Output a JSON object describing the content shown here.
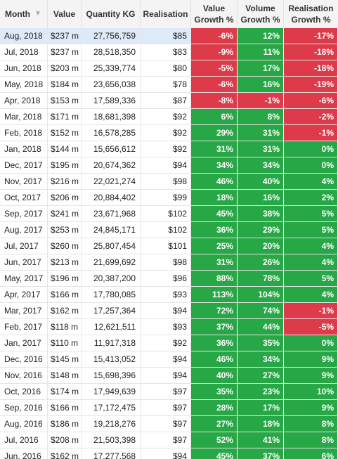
{
  "header": {
    "month": "Month",
    "value": "Value",
    "qty": "Quantity KG",
    "realisation": "Realisation",
    "value_growth": [
      "Value",
      "Growth %"
    ],
    "volume_growth": [
      "Volume",
      "Growth %"
    ],
    "realisation_growth": [
      "Realisation",
      "Growth %"
    ]
  },
  "colors": {
    "positive": "#27a745",
    "negative": "#dd3b4a",
    "selected_row": "#dfeaf8"
  },
  "rows": [
    {
      "month": "Aug, 2018",
      "value": "$237 m",
      "qty": "27,756,759",
      "real": "$85",
      "vg": "-6%",
      "volg": "12%",
      "rg": "-17%"
    },
    {
      "month": "Jul, 2018",
      "value": "$237 m",
      "qty": "28,518,350",
      "real": "$83",
      "vg": "-9%",
      "volg": "11%",
      "rg": "-18%"
    },
    {
      "month": "Jun, 2018",
      "value": "$203 m",
      "qty": "25,339,774",
      "real": "$80",
      "vg": "-5%",
      "volg": "17%",
      "rg": "-18%"
    },
    {
      "month": "May, 2018",
      "value": "$184 m",
      "qty": "23,656,038",
      "real": "$78",
      "vg": "-6%",
      "volg": "16%",
      "rg": "-19%"
    },
    {
      "month": "Apr, 2018",
      "value": "$153 m",
      "qty": "17,589,336",
      "real": "$87",
      "vg": "-8%",
      "volg": "-1%",
      "rg": "-6%"
    },
    {
      "month": "Mar, 2018",
      "value": "$171 m",
      "qty": "18,681,398",
      "real": "$92",
      "vg": "6%",
      "volg": "8%",
      "rg": "-2%"
    },
    {
      "month": "Feb, 2018",
      "value": "$152 m",
      "qty": "16,578,285",
      "real": "$92",
      "vg": "29%",
      "volg": "31%",
      "rg": "-1%"
    },
    {
      "month": "Jan, 2018",
      "value": "$144 m",
      "qty": "15,656,612",
      "real": "$92",
      "vg": "31%",
      "volg": "31%",
      "rg": "0%"
    },
    {
      "month": "Dec, 2017",
      "value": "$195 m",
      "qty": "20,674,362",
      "real": "$94",
      "vg": "34%",
      "volg": "34%",
      "rg": "0%"
    },
    {
      "month": "Nov, 2017",
      "value": "$216 m",
      "qty": "22,021,274",
      "real": "$98",
      "vg": "46%",
      "volg": "40%",
      "rg": "4%"
    },
    {
      "month": "Oct, 2017",
      "value": "$206 m",
      "qty": "20,884,402",
      "real": "$99",
      "vg": "18%",
      "volg": "16%",
      "rg": "2%"
    },
    {
      "month": "Sep, 2017",
      "value": "$241 m",
      "qty": "23,671,968",
      "real": "$102",
      "vg": "45%",
      "volg": "38%",
      "rg": "5%"
    },
    {
      "month": "Aug, 2017",
      "value": "$253 m",
      "qty": "24,845,171",
      "real": "$102",
      "vg": "36%",
      "volg": "29%",
      "rg": "5%"
    },
    {
      "month": "Jul, 2017",
      "value": "$260 m",
      "qty": "25,807,454",
      "real": "$101",
      "vg": "25%",
      "volg": "20%",
      "rg": "4%"
    },
    {
      "month": "Jun, 2017",
      "value": "$213 m",
      "qty": "21,699,692",
      "real": "$98",
      "vg": "31%",
      "volg": "26%",
      "rg": "4%"
    },
    {
      "month": "May, 2017",
      "value": "$196 m",
      "qty": "20,387,200",
      "real": "$96",
      "vg": "88%",
      "volg": "78%",
      "rg": "5%"
    },
    {
      "month": "Apr, 2017",
      "value": "$166 m",
      "qty": "17,780,085",
      "real": "$93",
      "vg": "113%",
      "volg": "104%",
      "rg": "4%"
    },
    {
      "month": "Mar, 2017",
      "value": "$162 m",
      "qty": "17,257,364",
      "real": "$94",
      "vg": "72%",
      "volg": "74%",
      "rg": "-1%"
    },
    {
      "month": "Feb, 2017",
      "value": "$118 m",
      "qty": "12,621,511",
      "real": "$93",
      "vg": "37%",
      "volg": "44%",
      "rg": "-5%"
    },
    {
      "month": "Jan, 2017",
      "value": "$110 m",
      "qty": "11,917,318",
      "real": "$92",
      "vg": "36%",
      "volg": "35%",
      "rg": "0%"
    },
    {
      "month": "Dec, 2016",
      "value": "$145 m",
      "qty": "15,413,052",
      "real": "$94",
      "vg": "46%",
      "volg": "34%",
      "rg": "9%"
    },
    {
      "month": "Nov, 2016",
      "value": "$148 m",
      "qty": "15,698,396",
      "real": "$94",
      "vg": "40%",
      "volg": "27%",
      "rg": "9%"
    },
    {
      "month": "Oct, 2016",
      "value": "$174 m",
      "qty": "17,949,639",
      "real": "$97",
      "vg": "35%",
      "volg": "23%",
      "rg": "10%"
    },
    {
      "month": "Sep, 2016",
      "value": "$166 m",
      "qty": "17,172,475",
      "real": "$97",
      "vg": "28%",
      "volg": "17%",
      "rg": "9%"
    },
    {
      "month": "Aug, 2016",
      "value": "$186 m",
      "qty": "19,218,276",
      "real": "$97",
      "vg": "27%",
      "volg": "18%",
      "rg": "8%"
    },
    {
      "month": "Jul, 2016",
      "value": "$208 m",
      "qty": "21,503,398",
      "real": "$97",
      "vg": "52%",
      "volg": "41%",
      "rg": "8%"
    },
    {
      "month": "Jun, 2016",
      "value": "$162 m",
      "qty": "17,277,568",
      "real": "$94",
      "vg": "45%",
      "volg": "37%",
      "rg": "6%"
    }
  ]
}
